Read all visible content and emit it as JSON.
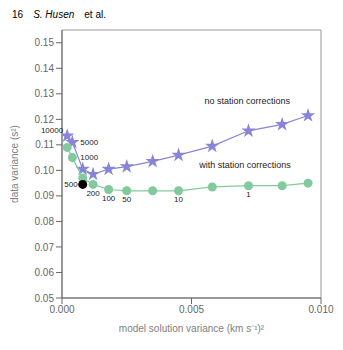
{
  "chart_data": {
    "type": "line",
    "header": [
      "16",
      "S. Husen",
      "et al."
    ],
    "xlabel": "model solution variance (km s⁻¹)²",
    "ylabel": "data variance (s²)",
    "xlim": [
      0.0,
      0.01
    ],
    "ylim": [
      0.05,
      0.155
    ],
    "xticks": [
      {
        "value": 0.0,
        "label": "0.000"
      },
      {
        "value": 0.005,
        "label": "0.005"
      },
      {
        "value": 0.01,
        "label": "0.010"
      }
    ],
    "yticks": [
      0.05,
      0.06,
      0.07,
      0.08,
      0.09,
      {
        "value": 0.1,
        "label": "0.10"
      },
      0.11,
      0.12,
      0.13,
      0.14,
      0.15
    ],
    "grid": false,
    "x": [
      0.0002,
      0.0004,
      0.0008,
      0.0012,
      0.0018,
      0.0025,
      0.0035,
      0.0045,
      0.0058,
      0.0072,
      0.0085,
      0.0095
    ],
    "series": [
      {
        "type": "line",
        "marker": "star",
        "color": "#8884d8",
        "values": [
          0.1135,
          0.111,
          0.1005,
          0.0985,
          0.1005,
          0.1015,
          0.1035,
          0.106,
          0.1095,
          0.1155,
          0.118,
          0.1215
        ],
        "point_labels": [
          "10000",
          "5000",
          null,
          null,
          null,
          null,
          null,
          null,
          null,
          null,
          null,
          null
        ]
      },
      {
        "type": "line",
        "marker": "circle",
        "color": "#82ca9d",
        "values": [
          0.109,
          0.105,
          0.097,
          0.0945,
          0.0925,
          0.092,
          0.092,
          0.092,
          0.0935,
          0.094,
          0.094,
          0.095
        ],
        "point_labels": [
          null,
          "1000",
          "500",
          "200",
          "100",
          "50",
          null,
          "10",
          null,
          "1",
          null,
          null
        ]
      },
      {
        "type": "scatter",
        "marker": "circle",
        "color": "#000000",
        "x": [
          0.0008
        ],
        "values": [
          0.0945
        ]
      }
    ],
    "annotations": [
      {
        "text": "no station corrections",
        "x": 0.0055,
        "y": 0.126
      },
      {
        "text": "with station corrections",
        "x": 0.0053,
        "y": 0.101
      }
    ]
  }
}
